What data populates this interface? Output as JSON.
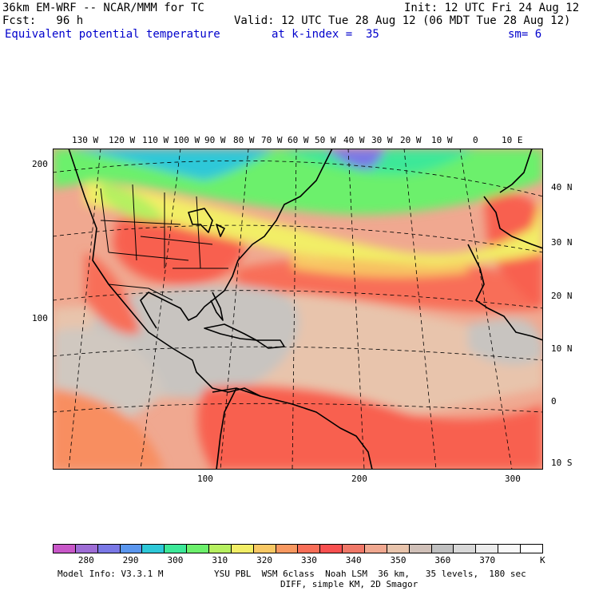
{
  "header": {
    "model": "36km EM-WRF -- NCAR/MMM for TC",
    "init": "Init: 12 UTC Fri 24 Aug 12",
    "fcst": "Fcst:   96 h",
    "valid": "Valid: 12 UTC Tue 28 Aug 12 (06 MDT Tue 28 Aug 12)",
    "field": "Equivalent potential temperature",
    "level": "at k-index =  35",
    "smooth": "sm= 6"
  },
  "map": {
    "top_lon_labels": [
      "130 W",
      "120 W",
      "110 W",
      "100 W",
      "90 W",
      "80 W",
      "70 W",
      "60 W",
      "50 W",
      "40 W",
      "30 W",
      "20 W",
      "10 W",
      "0",
      "10 E"
    ],
    "right_lat_labels": [
      "40 N",
      "30 N",
      "20 N",
      "10 N",
      "0",
      "10 S"
    ],
    "left_grid_labels": [
      "200",
      "100"
    ],
    "bottom_grid_labels": [
      "100",
      "200",
      "300"
    ]
  },
  "colorbar": {
    "colors": [
      "#c857c8",
      "#9e6dd6",
      "#7a78e6",
      "#5a96ee",
      "#2ec8d8",
      "#3ce898",
      "#6cf06c",
      "#b6f060",
      "#f2ee66",
      "#f8c864",
      "#f89860",
      "#f86e58",
      "#f85050",
      "#f07868",
      "#f0a890",
      "#e8c4ac",
      "#d0c0b8",
      "#c0c0c0",
      "#d8d8d8",
      "#ececec",
      "#f8f8f8",
      "#ffffff"
    ],
    "labels": [
      "280",
      "290",
      "300",
      "310",
      "320",
      "330",
      "340",
      "350",
      "360",
      "370"
    ],
    "unit": "K"
  },
  "footer": {
    "line1_left": "Model Info: V3.3.1 M",
    "line1_right": "YSU PBL  WSM 6class  Noah LSM  36 km,   35 levels,  180 sec",
    "line2": "DIFF, simple KM, 2D Smagor"
  }
}
